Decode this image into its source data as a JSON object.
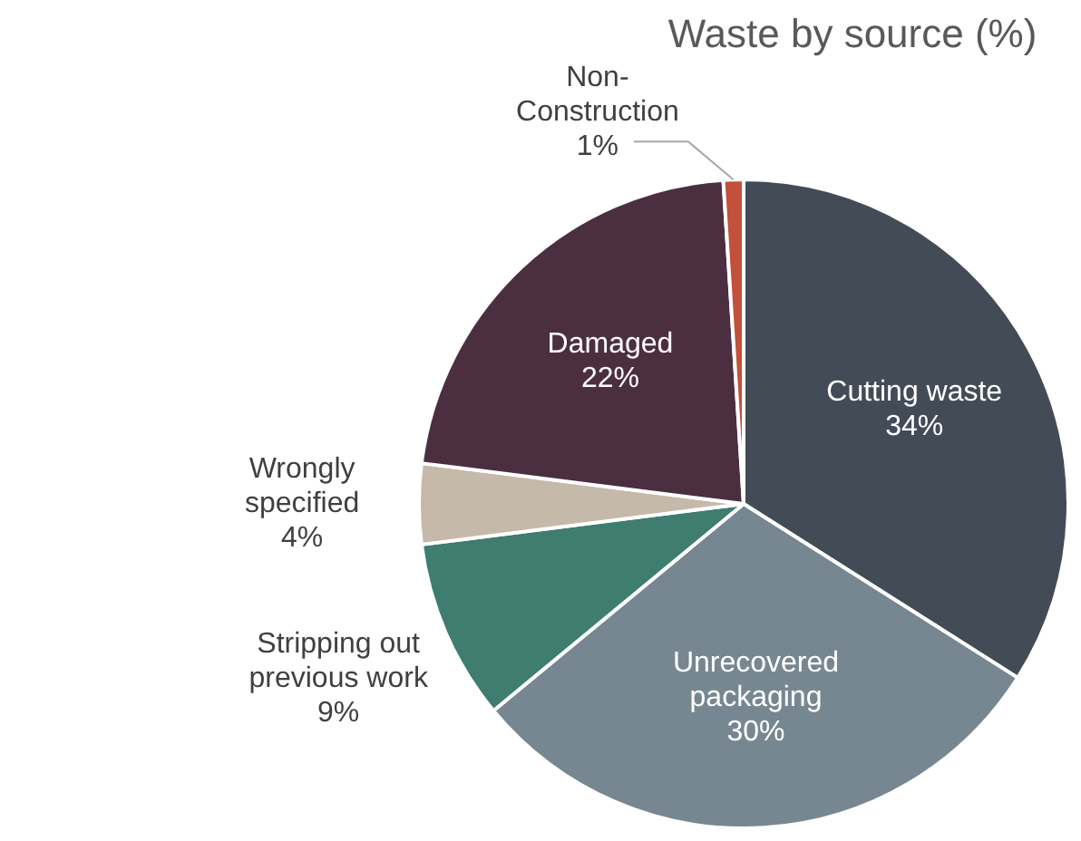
{
  "chart_data": {
    "type": "pie",
    "title": "Waste by source (%)",
    "categories": [
      "Cutting waste",
      "Unrecovered packaging",
      "Stripping out previous work",
      "Wrongly specified",
      "Damaged",
      "Non-Construction"
    ],
    "values": [
      34,
      30,
      9,
      4,
      22,
      1
    ],
    "colors": [
      "#434c56",
      "#778791",
      "#3e7d70",
      "#c5b9a9",
      "#4b2f41",
      "#c2503a"
    ],
    "value_labels": [
      "34%",
      "30%",
      "9%",
      "4%",
      "22%",
      "1%"
    ],
    "legend": false
  }
}
